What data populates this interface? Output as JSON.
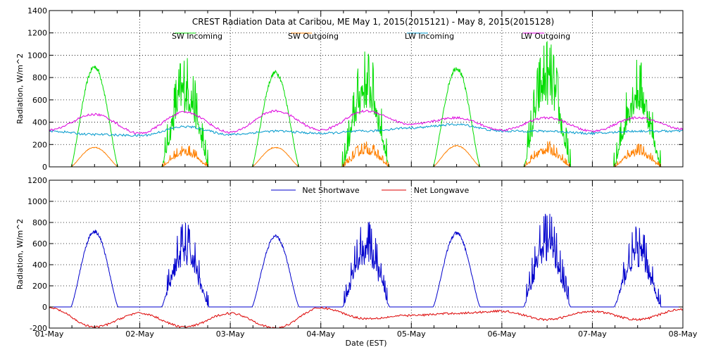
{
  "chart_data": [
    {
      "type": "line",
      "title": "CREST Radiation Data at Caribou, ME   May  1, 2015(2015121) - May  8, 2015(2015128)",
      "ylabel": "Radiation, W/m^2",
      "xlabel": "",
      "ylim": [
        0,
        1400
      ],
      "yticks": [
        0,
        200,
        400,
        600,
        800,
        1000,
        1200,
        1400
      ],
      "xlim": [
        0,
        7
      ],
      "grid": true,
      "legend_position": "top",
      "series": [
        {
          "name": "SW Incoming",
          "color": "#00dd00",
          "shape": "solar",
          "peaks": [
            900,
            880,
            850,
            920,
            890,
            1000,
            850
          ],
          "spiky": [
            false,
            true,
            false,
            true,
            false,
            true,
            true
          ]
        },
        {
          "name": "SW Outgoing",
          "color": "#ff8000",
          "shape": "solar",
          "peaks": [
            175,
            175,
            175,
            200,
            190,
            200,
            180
          ],
          "spiky": [
            false,
            true,
            false,
            true,
            false,
            true,
            true
          ]
        },
        {
          "name": "LW Incoming",
          "color": "#0099cc",
          "shape": "longwave",
          "daily_mean": [
            280,
            330,
            300,
            380,
            320,
            330,
            320
          ],
          "x": [
            0,
            0.5,
            1,
            1.5,
            2,
            2.5,
            3,
            3.5,
            4,
            4.5,
            5,
            5.5,
            6,
            6.5,
            7
          ],
          "y": [
            320,
            290,
            280,
            360,
            290,
            320,
            300,
            320,
            350,
            380,
            320,
            320,
            300,
            320,
            320
          ]
        },
        {
          "name": "LW Outgoing",
          "color": "#dd00dd",
          "shape": "longwave",
          "x": [
            0,
            0.5,
            1,
            1.5,
            2,
            2.5,
            3,
            3.5,
            4,
            4.5,
            5,
            5.5,
            6,
            6.5,
            7
          ],
          "y": [
            330,
            470,
            300,
            490,
            310,
            500,
            330,
            500,
            380,
            440,
            330,
            440,
            320,
            440,
            340
          ]
        }
      ]
    },
    {
      "type": "line",
      "title": "",
      "ylabel": "Radiation, W/m^2",
      "xlabel": "Date (EST)",
      "ylim": [
        -200,
        1200
      ],
      "yticks": [
        -200,
        0,
        200,
        400,
        600,
        800,
        1000,
        1200
      ],
      "xlim": [
        0,
        7
      ],
      "xtick_labels": [
        "01-May",
        "02-May",
        "03-May",
        "04-May",
        "05-May",
        "06-May",
        "07-May",
        "08-May"
      ],
      "grid": true,
      "legend_position": "top",
      "series": [
        {
          "name": "Net Shortwave",
          "color": "#0000cc",
          "shape": "solar",
          "peaks": [
            720,
            700,
            670,
            720,
            700,
            790,
            670
          ],
          "spiky": [
            false,
            true,
            false,
            true,
            false,
            true,
            true
          ]
        },
        {
          "name": "Net Longwave",
          "color": "#dd0000",
          "shape": "longwave",
          "x": [
            0,
            0.5,
            1,
            1.5,
            2,
            2.5,
            3,
            3.5,
            4,
            4.5,
            5,
            5.5,
            6,
            6.5,
            7
          ],
          "y": [
            -10,
            -190,
            -60,
            -190,
            -60,
            -200,
            -10,
            -110,
            -80,
            -60,
            -40,
            -120,
            -40,
            -120,
            -20
          ]
        }
      ]
    }
  ]
}
